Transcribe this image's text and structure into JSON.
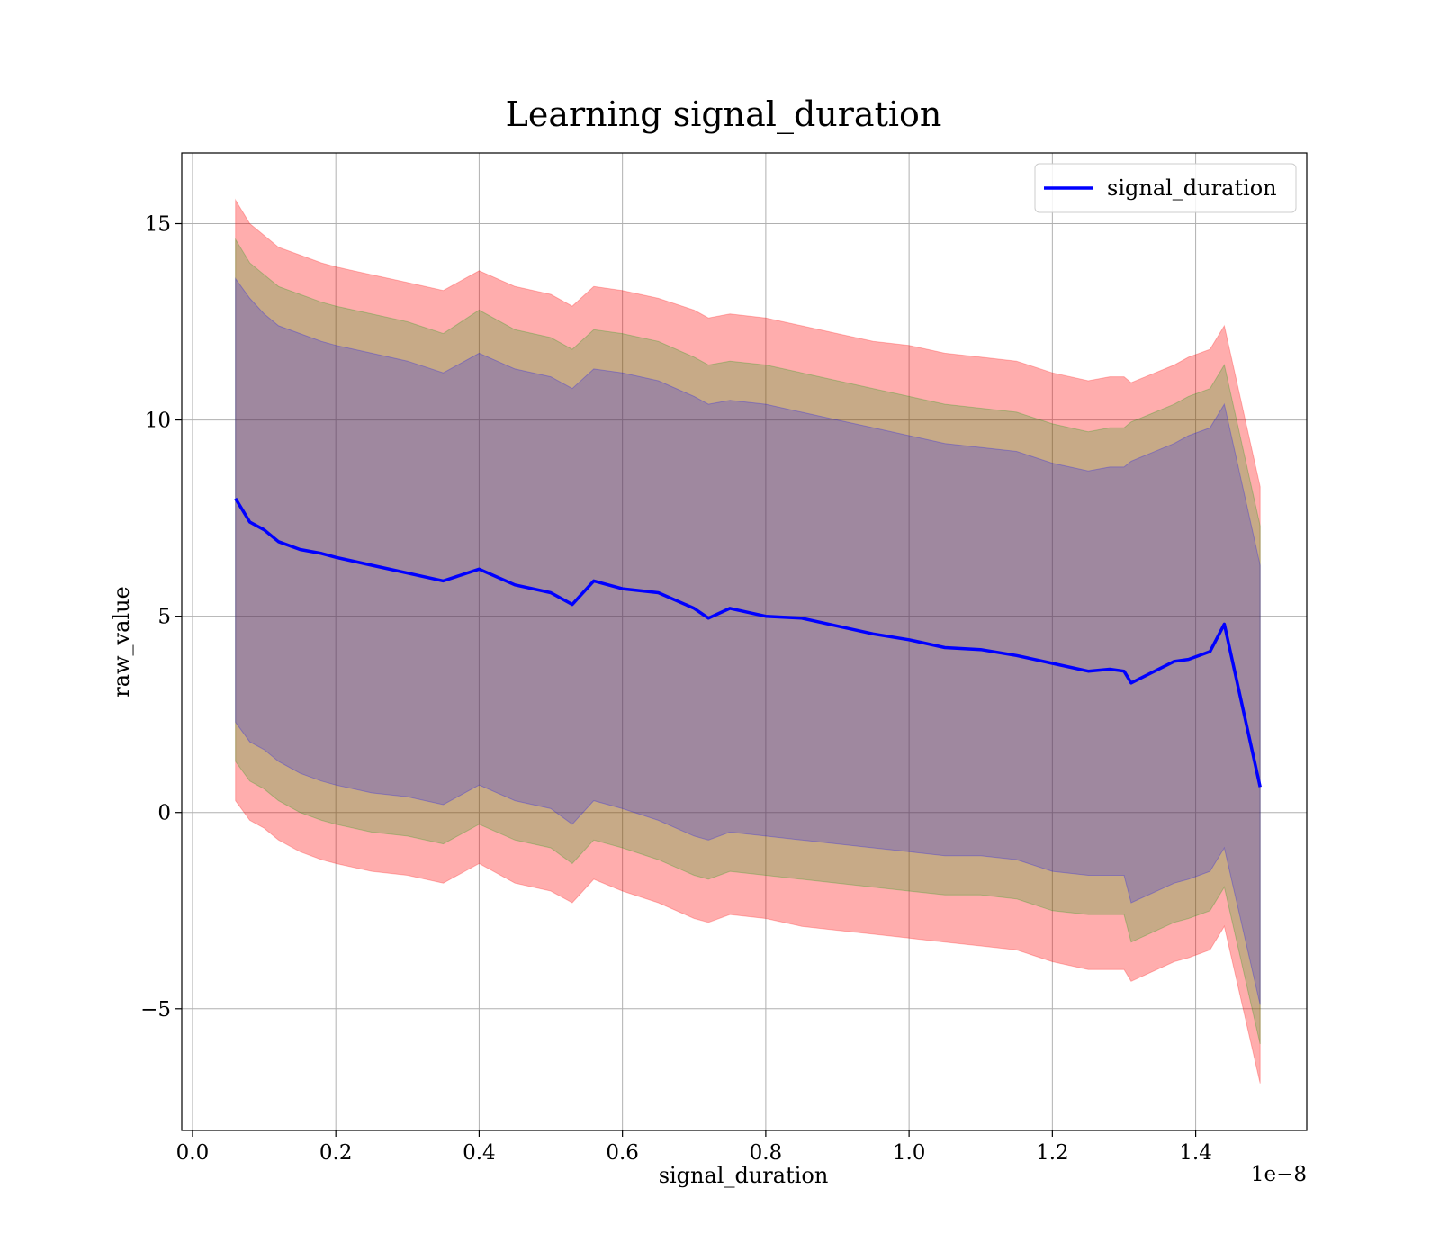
{
  "chart_data": {
    "type": "line",
    "title": "Learning signal_duration",
    "xlabel": "signal_duration",
    "ylabel": "raw_value",
    "x_offset_text": "1e−8",
    "x_scale_note": "x values are in units of 1e-8",
    "xlim": [
      -0.015,
      1.555
    ],
    "ylim": [
      -8.1,
      16.8
    ],
    "x_ticks": [
      0.0,
      0.2,
      0.4,
      0.6,
      0.8,
      1.0,
      1.2,
      1.4
    ],
    "x_tick_labels": [
      "0.0",
      "0.2",
      "0.4",
      "0.6",
      "0.8",
      "1.0",
      "1.2",
      "1.4"
    ],
    "y_ticks": [
      -5,
      0,
      5,
      10,
      15
    ],
    "y_tick_labels": [
      "−5",
      "0",
      "5",
      "10",
      "15"
    ],
    "grid": true,
    "legend_position": "top-right",
    "series": [
      {
        "name": "signal_duration",
        "color": "#0000ff",
        "x": [
          0.06,
          0.08,
          0.1,
          0.12,
          0.15,
          0.18,
          0.2,
          0.25,
          0.3,
          0.35,
          0.4,
          0.45,
          0.5,
          0.53,
          0.56,
          0.6,
          0.65,
          0.7,
          0.72,
          0.75,
          0.8,
          0.85,
          0.9,
          0.95,
          1.0,
          1.05,
          1.1,
          1.15,
          1.2,
          1.25,
          1.28,
          1.3,
          1.31,
          1.37,
          1.39,
          1.42,
          1.44,
          1.49
        ],
        "values": [
          8.0,
          7.4,
          7.2,
          6.9,
          6.7,
          6.6,
          6.5,
          6.3,
          6.1,
          5.9,
          6.2,
          5.8,
          5.6,
          5.3,
          5.9,
          5.7,
          5.6,
          5.2,
          4.95,
          5.2,
          5.0,
          4.95,
          4.75,
          4.55,
          4.4,
          4.2,
          4.15,
          4.0,
          3.8,
          3.6,
          3.65,
          3.6,
          3.3,
          3.85,
          3.9,
          4.1,
          4.8,
          0.65
        ]
      }
    ],
    "bands": [
      {
        "sigma": 3,
        "color": "#ff0000",
        "opacity": 0.32,
        "upper": [
          15.6,
          15.0,
          14.7,
          14.4,
          14.2,
          14.0,
          13.9,
          13.7,
          13.5,
          13.3,
          13.8,
          13.4,
          13.2,
          12.9,
          13.4,
          13.3,
          13.1,
          12.8,
          12.6,
          12.7,
          12.6,
          12.4,
          12.2,
          12.0,
          11.9,
          11.7,
          11.6,
          11.5,
          11.2,
          11.0,
          11.1,
          11.1,
          10.95,
          11.4,
          11.6,
          11.8,
          12.4,
          8.3
        ],
        "lower": [
          0.3,
          -0.2,
          -0.4,
          -0.7,
          -1.0,
          -1.2,
          -1.3,
          -1.5,
          -1.6,
          -1.8,
          -1.3,
          -1.8,
          -2.0,
          -2.3,
          -1.7,
          -2.0,
          -2.3,
          -2.7,
          -2.8,
          -2.6,
          -2.7,
          -2.9,
          -3.0,
          -3.1,
          -3.2,
          -3.3,
          -3.4,
          -3.5,
          -3.8,
          -4.0,
          -4.0,
          -4.0,
          -4.3,
          -3.8,
          -3.7,
          -3.5,
          -2.9,
          -6.9
        ]
      },
      {
        "sigma": 2,
        "color": "#00a000",
        "opacity": 0.22,
        "upper": [
          14.6,
          14.0,
          13.7,
          13.4,
          13.2,
          13.0,
          12.9,
          12.7,
          12.5,
          12.2,
          12.8,
          12.3,
          12.1,
          11.8,
          12.3,
          12.2,
          12.0,
          11.6,
          11.4,
          11.5,
          11.4,
          11.2,
          11.0,
          10.8,
          10.6,
          10.4,
          10.3,
          10.2,
          9.9,
          9.7,
          9.8,
          9.8,
          9.95,
          10.4,
          10.6,
          10.8,
          11.4,
          7.3
        ],
        "lower": [
          1.3,
          0.8,
          0.6,
          0.3,
          0.0,
          -0.2,
          -0.3,
          -0.5,
          -0.6,
          -0.8,
          -0.3,
          -0.7,
          -0.9,
          -1.3,
          -0.7,
          -0.9,
          -1.2,
          -1.6,
          -1.7,
          -1.5,
          -1.6,
          -1.7,
          -1.8,
          -1.9,
          -2.0,
          -2.1,
          -2.1,
          -2.2,
          -2.5,
          -2.6,
          -2.6,
          -2.6,
          -3.3,
          -2.8,
          -2.7,
          -2.5,
          -1.9,
          -5.9
        ]
      },
      {
        "sigma": 1,
        "color": "#0000ff",
        "opacity": 0.2,
        "upper": [
          13.6,
          13.1,
          12.7,
          12.4,
          12.2,
          12.0,
          11.9,
          11.7,
          11.5,
          11.2,
          11.7,
          11.3,
          11.1,
          10.8,
          11.3,
          11.2,
          11.0,
          10.6,
          10.4,
          10.5,
          10.4,
          10.2,
          10.0,
          9.8,
          9.6,
          9.4,
          9.3,
          9.2,
          8.9,
          8.7,
          8.8,
          8.8,
          8.95,
          9.4,
          9.6,
          9.8,
          10.4,
          6.3
        ],
        "lower": [
          2.3,
          1.8,
          1.6,
          1.3,
          1.0,
          0.8,
          0.7,
          0.5,
          0.4,
          0.2,
          0.7,
          0.3,
          0.1,
          -0.3,
          0.3,
          0.1,
          -0.2,
          -0.6,
          -0.7,
          -0.5,
          -0.6,
          -0.7,
          -0.8,
          -0.9,
          -1.0,
          -1.1,
          -1.1,
          -1.2,
          -1.5,
          -1.6,
          -1.6,
          -1.6,
          -2.3,
          -1.8,
          -1.7,
          -1.5,
          -0.9,
          -4.9
        ]
      }
    ]
  }
}
